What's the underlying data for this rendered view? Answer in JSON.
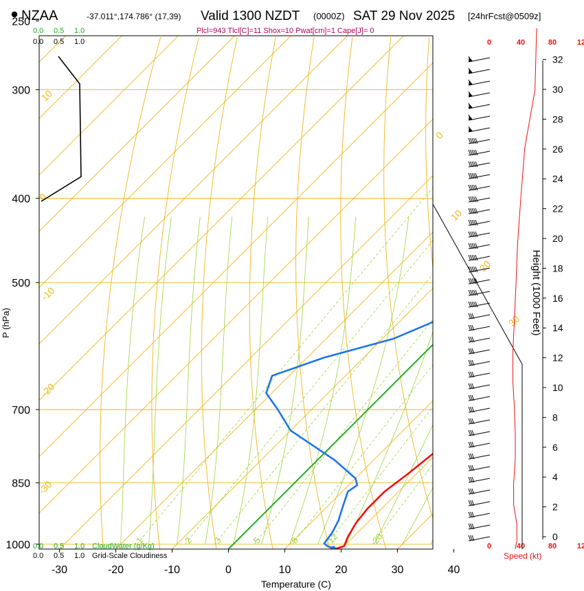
{
  "header": {
    "station": "NZAA",
    "location": "-37.011°,174.786° (17,39)",
    "valid": "Valid 1300 NZDT",
    "utc": "(0000Z)",
    "date": "SAT 29 Nov 2025",
    "forecast": "[24hrFcst@0509z]",
    "indices": "Plcl=943 Tlcl[C]=11 Shox=10 Pwat[cm]=1 Cape[J]= 0"
  },
  "colors": {
    "temp": "#ee1111",
    "dewpoint": "#1e74e6",
    "isotherm": "#f2b418",
    "mixing": "#9bd43a",
    "cloud": "#22aa22",
    "speed": "#ee1111"
  },
  "chart_data": {
    "type": "line",
    "title": "Skew-T log-P sounding NZAA",
    "xlabel": "Temperature (C)",
    "ylabel": "P (hPa)",
    "y2label": "Height (1000 Feet)",
    "x_ticks": [
      "-30",
      "-20",
      "-10",
      "0",
      "10",
      "20",
      "30",
      "40"
    ],
    "p_ticks": [
      "250",
      "300",
      "400",
      "500",
      "700",
      "850",
      "1000"
    ],
    "height_ticks": [
      "0",
      "2",
      "4",
      "6",
      "8",
      "10",
      "12",
      "14",
      "16",
      "18",
      "20",
      "22",
      "24",
      "26",
      "28",
      "30",
      "32"
    ],
    "speed_label": "Speed (kt)",
    "speed_ticks_top": [
      "0",
      "40",
      "80",
      "12"
    ],
    "speed_ticks_bottom": [
      "0",
      "40",
      "80",
      "12"
    ],
    "cloud_water_label": "CloudWater (g/Kg)",
    "cloudiness_label": "Grid-Scale Cloudiness",
    "cloud_ticks": [
      "0.0",
      "0.5",
      "1.0"
    ],
    "cloud_ticks_alt": [
      "0.0",
      "0.5",
      "1.0"
    ],
    "isotherm_labels": [
      "10",
      "0",
      "-10",
      "-20",
      "-30",
      "0",
      "10",
      "20",
      "30"
    ],
    "mixing_ratio_labels": [
      "1",
      "2",
      "3",
      "5",
      "8",
      "12",
      "20"
    ],
    "series": [
      {
        "name": "Temperature",
        "points": [
          [
            -2.5,
            260
          ],
          [
            -1.5,
            280
          ],
          [
            0,
            300
          ],
          [
            1.5,
            320
          ],
          [
            3,
            340
          ],
          [
            4.5,
            360
          ],
          [
            6,
            380
          ],
          [
            7,
            400
          ],
          [
            8,
            420
          ],
          [
            9.5,
            450
          ],
          [
            11,
            480
          ],
          [
            13,
            520
          ],
          [
            15.5,
            570
          ],
          [
            17,
            620
          ],
          [
            18.5,
            680
          ],
          [
            19.5,
            730
          ],
          [
            19.5,
            780
          ],
          [
            18.5,
            830
          ],
          [
            17.5,
            870
          ],
          [
            17.5,
            910
          ],
          [
            18,
            945
          ],
          [
            19,
            980
          ],
          [
            20,
            1005
          ],
          [
            19,
            1012
          ],
          [
            18.5,
            1013
          ]
        ]
      },
      {
        "name": "Dewpoint",
        "points": [
          [
            -6,
            260
          ],
          [
            -4,
            280
          ],
          [
            -1,
            300
          ],
          [
            2,
            330
          ],
          [
            5,
            360
          ],
          [
            7.5,
            380
          ],
          [
            8.5,
            400
          ],
          [
            9,
            425
          ],
          [
            7,
            450
          ],
          [
            3,
            480
          ],
          [
            0,
            500
          ],
          [
            -1.5,
            540
          ],
          [
            -8,
            580
          ],
          [
            -17,
            610
          ],
          [
            -23,
            640
          ],
          [
            -21,
            670
          ],
          [
            -16,
            700
          ],
          [
            -10,
            740
          ],
          [
            3,
            800
          ],
          [
            10,
            840
          ],
          [
            11.5,
            855
          ],
          [
            11,
            870
          ],
          [
            12.5,
            900
          ],
          [
            14.5,
            940
          ],
          [
            15.5,
            970
          ],
          [
            16,
            998
          ],
          [
            17,
            1005
          ],
          [
            18.5,
            1011
          ]
        ]
      },
      {
        "name": "Cloudiness",
        "points": [
          [
            0,
            260
          ],
          [
            0,
            1013
          ]
        ]
      },
      {
        "name": "Wind speed",
        "points": [
          [
            60,
            255
          ],
          [
            58,
            300
          ],
          [
            45,
            350
          ],
          [
            40,
            400
          ],
          [
            36,
            450
          ],
          [
            34,
            500
          ],
          [
            32,
            550
          ],
          [
            30,
            600
          ],
          [
            30,
            650
          ],
          [
            32,
            700
          ],
          [
            33,
            750
          ],
          [
            33,
            800
          ],
          [
            31,
            850
          ],
          [
            31,
            900
          ],
          [
            35,
            950
          ],
          [
            35,
            990
          ],
          [
            33,
            1013
          ]
        ]
      }
    ]
  }
}
